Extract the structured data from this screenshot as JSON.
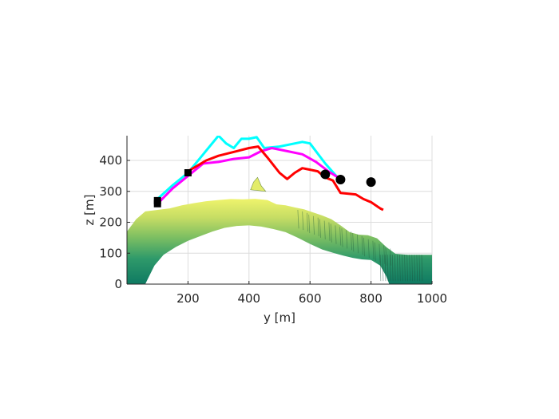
{
  "chart_data": {
    "type": "line",
    "xlabel": "y [m]",
    "ylabel": "z [m]",
    "xlim": [
      0,
      1000
    ],
    "ylim": [
      0,
      480
    ],
    "xticks": [
      200,
      400,
      600,
      800,
      1000
    ],
    "yticks": [
      0,
      100,
      200,
      300,
      400
    ],
    "grid": true,
    "terrain": {
      "top": [
        [
          0,
          170
        ],
        [
          30,
          210
        ],
        [
          60,
          235
        ],
        [
          100,
          240
        ],
        [
          140,
          245
        ],
        [
          180,
          255
        ],
        [
          220,
          262
        ],
        [
          260,
          268
        ],
        [
          300,
          272
        ],
        [
          340,
          275
        ],
        [
          380,
          274
        ],
        [
          420,
          276
        ],
        [
          460,
          272
        ],
        [
          490,
          258
        ],
        [
          520,
          255
        ],
        [
          550,
          248
        ],
        [
          580,
          242
        ],
        [
          610,
          232
        ],
        [
          640,
          222
        ],
        [
          670,
          210
        ],
        [
          700,
          190
        ],
        [
          730,
          168
        ],
        [
          760,
          160
        ],
        [
          790,
          158
        ],
        [
          820,
          148
        ],
        [
          850,
          120
        ],
        [
          880,
          98
        ],
        [
          920,
          95
        ],
        [
          1000,
          95
        ]
      ],
      "bottom": [
        [
          0,
          0
        ],
        [
          20,
          0
        ],
        [
          40,
          0
        ],
        [
          60,
          0
        ],
        [
          70,
          20
        ],
        [
          90,
          60
        ],
        [
          120,
          95
        ],
        [
          160,
          120
        ],
        [
          200,
          140
        ],
        [
          240,
          155
        ],
        [
          280,
          170
        ],
        [
          320,
          182
        ],
        [
          360,
          188
        ],
        [
          400,
          190
        ],
        [
          440,
          186
        ],
        [
          480,
          178
        ],
        [
          520,
          168
        ],
        [
          560,
          150
        ],
        [
          600,
          130
        ],
        [
          640,
          112
        ],
        [
          680,
          100
        ],
        [
          710,
          92
        ],
        [
          740,
          85
        ],
        [
          770,
          80
        ],
        [
          800,
          78
        ],
        [
          830,
          60
        ],
        [
          850,
          25
        ],
        [
          860,
          0
        ],
        [
          1000,
          0
        ]
      ],
      "peaks": [
        [
          405,
          305
        ],
        [
          415,
          330
        ],
        [
          428,
          345
        ],
        [
          440,
          318
        ],
        [
          455,
          300
        ]
      ],
      "colors": [
        "#0f7a62",
        "#2f9a6a",
        "#7dbf62",
        "#c6dd64",
        "#eff36c"
      ]
    },
    "series": [
      {
        "color": "#00ffff",
        "x": [
          100,
          150,
          200,
          250,
          300,
          325,
          350,
          375,
          400,
          425,
          450,
          500,
          575,
          600,
          650,
          690
        ],
        "y": [
          275,
          320,
          360,
          420,
          480,
          455,
          440,
          470,
          470,
          475,
          440,
          445,
          460,
          455,
          390,
          345
        ]
      },
      {
        "color": "#ff00ff",
        "x": [
          100,
          150,
          200,
          250,
          300,
          350,
          400,
          440,
          475,
          525,
          575,
          620,
          660,
          700
        ],
        "y": [
          260,
          310,
          350,
          390,
          395,
          405,
          410,
          430,
          440,
          430,
          420,
          395,
          365,
          340
        ]
      },
      {
        "color": "#ff0000",
        "x": [
          200,
          260,
          300,
          360,
          400,
          430,
          460,
          500,
          525,
          550,
          575,
          600,
          625,
          650,
          675,
          700,
          750,
          775,
          800,
          830,
          840
        ],
        "y": [
          365,
          400,
          415,
          430,
          440,
          445,
          410,
          360,
          340,
          360,
          375,
          370,
          365,
          345,
          335,
          295,
          290,
          275,
          265,
          245,
          240
        ]
      }
    ],
    "markers": {
      "squares": [
        [
          100,
          270
        ],
        [
          100,
          260
        ],
        [
          200,
          360
        ]
      ],
      "circles": [
        [
          650,
          355
        ],
        [
          700,
          338
        ],
        [
          800,
          330
        ]
      ]
    }
  }
}
